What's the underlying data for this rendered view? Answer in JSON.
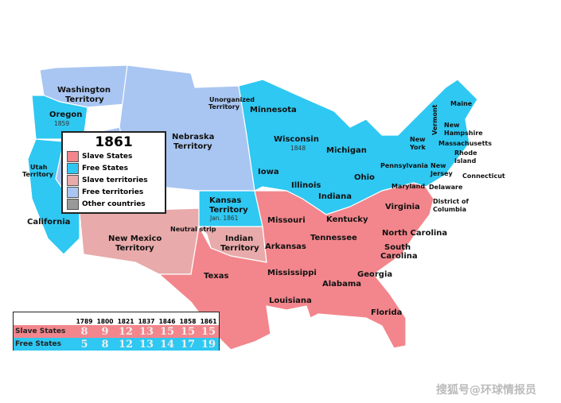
{
  "colors": {
    "slave_states": "#f2868c",
    "free_states": "#2ec8f2",
    "slave_territories": "#e8aaaa",
    "free_territories": "#a9c6f2",
    "other_countries": "#999999"
  },
  "legend": {
    "title": "1861",
    "items": [
      {
        "label": "Slave States",
        "color": "#f2868c"
      },
      {
        "label": "Free States",
        "color": "#2ec8f2"
      },
      {
        "label": "Slave territories",
        "color": "#e8aaaa"
      },
      {
        "label": "Free territories",
        "color": "#a9c6f2"
      },
      {
        "label": "Other countries",
        "color": "#999999"
      }
    ]
  },
  "labels": {
    "washington": "Washington",
    "washington2": "Territory",
    "oregon": "Oregon",
    "oregon_year": "1859",
    "california": "California",
    "utah": "Utah",
    "utah2": "Territory",
    "nebraska": "Nebraska",
    "nebraska2": "Territory",
    "unorganized": "Unorganized",
    "unorganized2": "Territory",
    "minnesota": "Minnesota",
    "wisconsin": "Wisconsin",
    "wisconsin_year": "1848",
    "michigan": "Michigan",
    "iowa": "Iowa",
    "illinois": "Illinois",
    "indiana": "Indiana",
    "ohio": "Ohio",
    "pennsylvania": "Pennsylvania",
    "newyork": "New",
    "newyork2": "York",
    "vermont": "Vermont",
    "maine": "Maine",
    "nh": "New",
    "nh2": "Hampshire",
    "mass": "Massachusetts",
    "ri": "Rhode",
    "ri2": "Island",
    "ct": "Connecticut",
    "nj": "New",
    "nj2": "Jersey",
    "delaware": "Delaware",
    "maryland": "Maryland",
    "dc": "District of",
    "dc2": "Columbia",
    "kansas": "Kansas",
    "kansas2": "Territory",
    "kansas_year": "Jan. 1861",
    "neutral": "Neutral strip",
    "missouri": "Missouri",
    "kentucky": "Kentucky",
    "virginia": "Virginia",
    "tennessee": "Tennessee",
    "nc": "North Carolina",
    "sc": "South",
    "sc2": "Carolina",
    "arkansas": "Arkansas",
    "indian": "Indian",
    "indian2": "Territory",
    "newmexico": "New Mexico",
    "newmexico2": "Territory",
    "texas": "Texas",
    "mississippi": "Mississippi",
    "alabama": "Alabama",
    "georgia": "Georgia",
    "louisiana": "Louisiana",
    "florida": "Florida"
  },
  "table": {
    "years": [
      "1789",
      "1800",
      "1821",
      "1837",
      "1846",
      "1858",
      "1861"
    ],
    "rows": [
      {
        "label": "Slave States",
        "values": [
          "8",
          "9",
          "12",
          "13",
          "15",
          "15",
          "15"
        ],
        "color": "#f2868c"
      },
      {
        "label": "Free States",
        "values": [
          "5",
          "8",
          "12",
          "13",
          "14",
          "17",
          "19"
        ],
        "color": "#2ec8f2"
      }
    ]
  },
  "watermark": "搜狐号@环球情报员"
}
